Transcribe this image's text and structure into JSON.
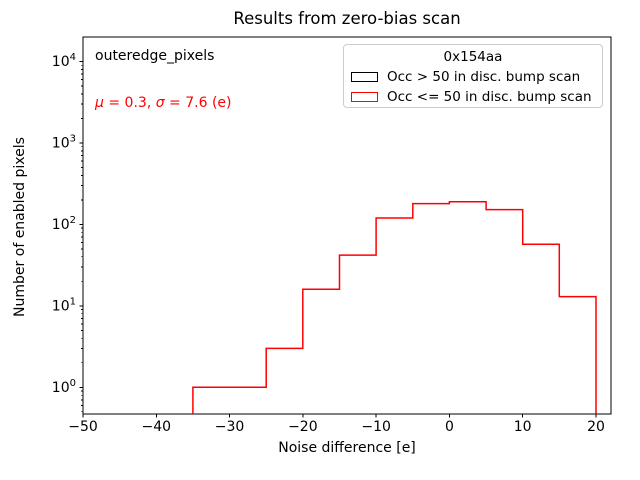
{
  "chart_data": {
    "type": "histogram-step",
    "title": "Results from zero-bias scan",
    "xlabel": "Noise difference [e]",
    "ylabel": "Number of enabled pixels",
    "y_scale": "log",
    "grid": false,
    "xlim": [
      -50,
      22.05
    ],
    "ylim": [
      0.47,
      20000
    ],
    "x_ticks": [
      -50,
      -40,
      -30,
      -20,
      -10,
      0,
      10,
      20
    ],
    "y_tick_exponents": [
      0,
      1,
      2,
      3,
      4
    ],
    "legend": {
      "title": "0x154aa",
      "position": "upper right"
    },
    "series": [
      {
        "name": "Occ > 50 in disc. bump scan",
        "color": "#000000",
        "bin_edges": [],
        "counts": []
      },
      {
        "name": "Occ <= 50 in disc. bump scan",
        "color": "#ff0000",
        "bin_edges": [
          -35,
          -30,
          -25,
          -20,
          -15,
          -10,
          -5,
          0,
          5,
          10,
          15,
          20
        ],
        "counts": [
          1,
          1,
          3,
          16,
          42,
          120,
          180,
          190,
          152,
          57,
          13
        ]
      }
    ],
    "annotations": [
      {
        "text": "outeredge_pixels",
        "color": "#000000"
      },
      {
        "text": "μ = 0.3, σ = 7.6 (e)",
        "color": "#ff0000"
      }
    ]
  },
  "stats": {
    "mu_symbol": "μ",
    "mu_rest": " = 0.3, ",
    "sigma_symbol": "σ",
    "sigma_rest": " = 7.6 (e)"
  },
  "colors": {
    "histogram_red": "#ff0000",
    "text": "#000000",
    "legend_border": "#cccccc",
    "background": "#ffffff"
  }
}
